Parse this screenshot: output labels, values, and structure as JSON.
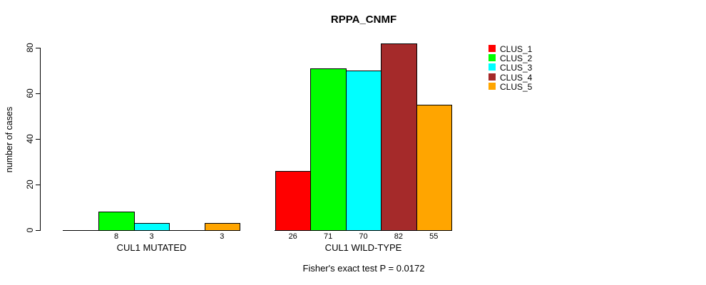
{
  "chart_data": {
    "type": "bar",
    "title": "RPPA_CNMF",
    "ylabel": "number of cases",
    "ylim": [
      0,
      80
    ],
    "yticks": [
      0,
      20,
      40,
      60,
      80
    ],
    "grid": false,
    "legend_position": "right",
    "categories": [
      "CUL1 MUTATED",
      "CUL1 WILD-TYPE"
    ],
    "series": [
      {
        "name": "CLUS_1",
        "color": "#FF0000",
        "values": [
          0,
          26
        ]
      },
      {
        "name": "CLUS_2",
        "color": "#00FF00",
        "values": [
          8,
          71
        ]
      },
      {
        "name": "CLUS_3",
        "color": "#00FFFF",
        "values": [
          3,
          70
        ]
      },
      {
        "name": "CLUS_4",
        "color": "#A52A2A",
        "values": [
          0,
          82
        ]
      },
      {
        "name": "CLUS_5",
        "color": "#FFA500",
        "values": [
          3,
          55
        ]
      }
    ],
    "bar_value_labels": {
      "CUL1 MUTATED": [
        "",
        "8",
        "3",
        "",
        "3"
      ],
      "CUL1 WILD-TYPE": [
        "26",
        "71",
        "70",
        "82",
        "55"
      ]
    },
    "annotation": "Fisher's exact test P = 0.0172"
  }
}
